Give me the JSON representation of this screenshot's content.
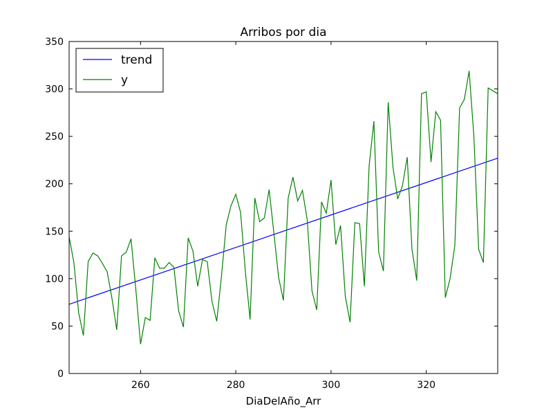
{
  "chart_data": {
    "type": "line",
    "title": "Arribos por dia",
    "xlabel": "DiaDelAño_Arr",
    "ylabel": "",
    "xlim": [
      245,
      335
    ],
    "ylim": [
      0,
      350
    ],
    "x_ticks": [
      260,
      280,
      300,
      320
    ],
    "y_ticks": [
      0,
      50,
      100,
      150,
      200,
      250,
      300,
      350
    ],
    "grid": false,
    "legend_position": "top-left",
    "series": [
      {
        "name": "trend",
        "color": "#0000ff",
        "x": [
          245,
          335
        ],
        "y": [
          73,
          227
        ]
      },
      {
        "name": "y",
        "color": "#008000",
        "x": [
          245,
          246,
          247,
          248,
          249,
          250,
          251,
          252,
          253,
          254,
          255,
          256,
          257,
          258,
          259,
          260,
          261,
          262,
          263,
          264,
          265,
          266,
          267,
          268,
          269,
          270,
          271,
          272,
          273,
          274,
          275,
          276,
          277,
          278,
          279,
          280,
          281,
          282,
          283,
          284,
          285,
          286,
          287,
          288,
          289,
          290,
          291,
          292,
          293,
          294,
          295,
          296,
          297,
          298,
          299,
          300,
          301,
          302,
          303,
          304,
          305,
          306,
          307,
          308,
          309,
          310,
          311,
          312,
          313,
          314,
          315,
          316,
          317,
          318,
          319,
          320,
          321,
          322,
          323,
          324,
          325,
          326,
          327,
          328,
          329,
          330,
          331,
          332,
          333,
          334,
          335
        ],
        "y": [
          144,
          117,
          64,
          40,
          118,
          127,
          124,
          116,
          107,
          79,
          46,
          124,
          128,
          142,
          89,
          31,
          59,
          56,
          122,
          111,
          111,
          117,
          112,
          66,
          49,
          143,
          129,
          92,
          120,
          118,
          76,
          55,
          103,
          157,
          177,
          189,
          170,
          108,
          57,
          185,
          160,
          164,
          194,
          148,
          101,
          77,
          185,
          207,
          182,
          193,
          162,
          87,
          67,
          181,
          169,
          204,
          136,
          156,
          81,
          54,
          159,
          158,
          92,
          219,
          266,
          128,
          108,
          286,
          218,
          184,
          198,
          228,
          131,
          98,
          295,
          297,
          223,
          276,
          267,
          80,
          100,
          135,
          280,
          289,
          319,
          250,
          131,
          117,
          301,
          298,
          295
        ]
      }
    ]
  }
}
